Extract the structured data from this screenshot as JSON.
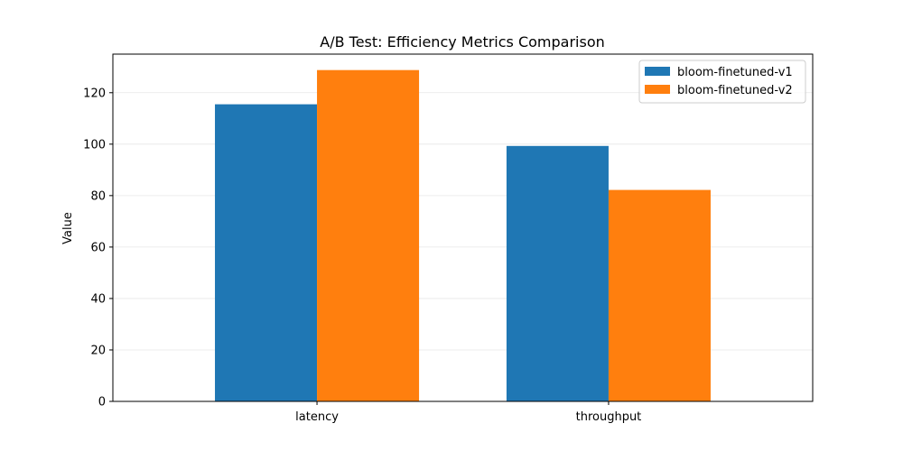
{
  "chart_data": {
    "type": "bar",
    "title": "A/B Test: Efficiency Metrics Comparison",
    "xlabel": "",
    "ylabel": "Value",
    "categories": [
      "latency",
      "throughput"
    ],
    "series": [
      {
        "name": "bloom-finetuned-v1",
        "color": "#1f77b4",
        "values": [
          115.5,
          99.3
        ]
      },
      {
        "name": "bloom-finetuned-v2",
        "color": "#ff7f0e",
        "values": [
          128.8,
          82.2
        ]
      }
    ],
    "ylim": [
      0,
      135
    ],
    "yticks": [
      0,
      20,
      40,
      60,
      80,
      100,
      120
    ],
    "grid": "y",
    "legend_position": "top-right"
  }
}
